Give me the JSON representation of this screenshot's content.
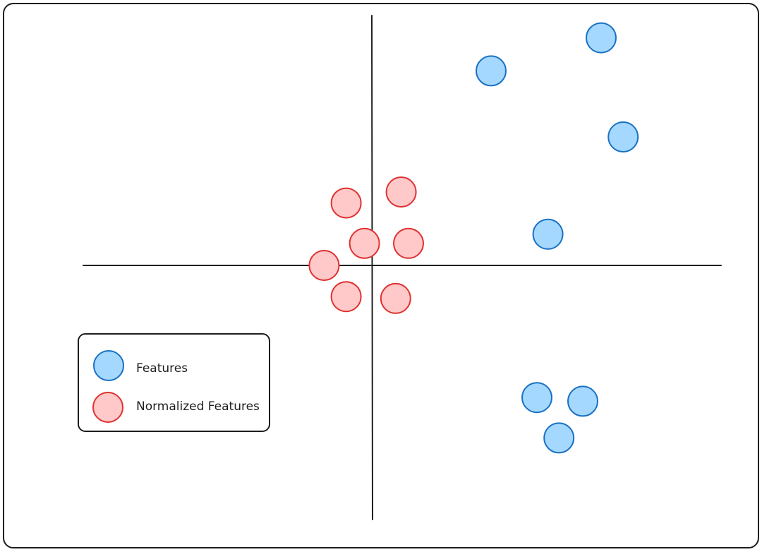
{
  "chart_data": {
    "type": "scatter",
    "title": "",
    "xlabel": "",
    "ylabel": "",
    "grid": false,
    "legend_placement": "bottom-left",
    "xlim": [
      -8.5,
      10
    ],
    "ylim": [
      -7.4,
      7.4
    ],
    "series": [
      {
        "name": "Features",
        "fill": "#a5d8ff",
        "stroke": "#1971c2",
        "points": [
          {
            "x": 3.25,
            "y": 5.3
          },
          {
            "x": 6.25,
            "y": 6.2
          },
          {
            "x": 6.85,
            "y": 3.5
          },
          {
            "x": 4.8,
            "y": 0.85
          },
          {
            "x": 4.5,
            "y": -3.6
          },
          {
            "x": 5.75,
            "y": -3.7
          },
          {
            "x": 5.1,
            "y": -4.7
          }
        ]
      },
      {
        "name": "Normalized Features",
        "fill": "#ffc9c9",
        "stroke": "#e03131",
        "points": [
          {
            "x": -0.7,
            "y": 1.7
          },
          {
            "x": 0.8,
            "y": 2.0
          },
          {
            "x": -0.2,
            "y": 0.6
          },
          {
            "x": 1.0,
            "y": 0.6
          },
          {
            "x": -1.3,
            "y": 0.0
          },
          {
            "x": -0.7,
            "y": -0.85
          },
          {
            "x": 0.65,
            "y": -0.9
          }
        ]
      }
    ]
  }
}
